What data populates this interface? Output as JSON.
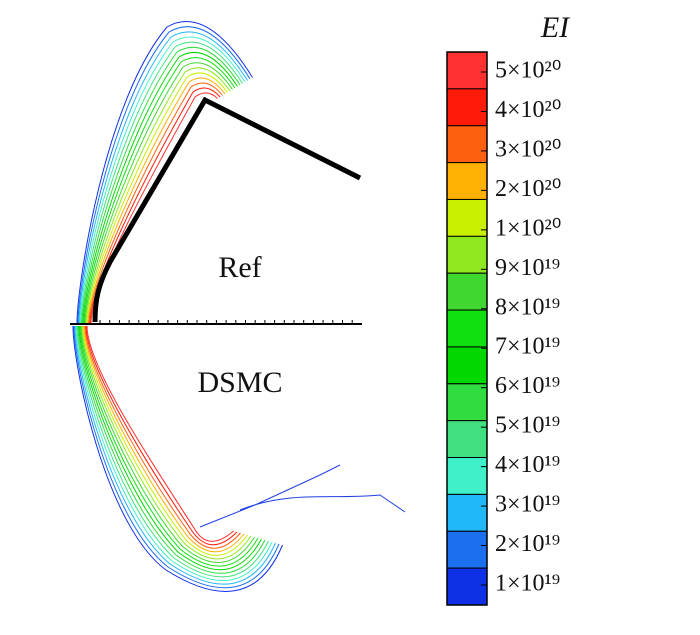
{
  "chart_data": {
    "type": "contour",
    "annotations": [
      "Ref",
      "DSMC"
    ],
    "colorbar": {
      "title": "EI",
      "ticks": [
        {
          "value": 5e+20,
          "label": "5×10²⁰"
        },
        {
          "value": 4e+20,
          "label": "4×10²⁰"
        },
        {
          "value": 3e+20,
          "label": "3×10²⁰"
        },
        {
          "value": 2e+20,
          "label": "2×10²⁰"
        },
        {
          "value": 1e+20,
          "label": "1×10²⁰"
        },
        {
          "value": 9e+19,
          "label": "9×10¹⁹"
        },
        {
          "value": 8e+19,
          "label": "8×10¹⁹"
        },
        {
          "value": 7e+19,
          "label": "7×10¹⁹"
        },
        {
          "value": 6e+19,
          "label": "6×10¹⁹"
        },
        {
          "value": 5e+19,
          "label": "5×10¹⁹"
        },
        {
          "value": 4e+19,
          "label": "4×10¹⁹"
        },
        {
          "value": 3e+19,
          "label": "3×10¹⁹"
        },
        {
          "value": 2e+19,
          "label": "2×10¹⁹"
        },
        {
          "value": 1e+19,
          "label": "1×10¹⁹"
        }
      ],
      "colors": [
        "#ff3030",
        "#ff1a0a",
        "#ff6010",
        "#ffb000",
        "#c8f000",
        "#90e820",
        "#40d830",
        "#10e010",
        "#00d800",
        "#30dc40",
        "#40e080",
        "#40f0c8",
        "#20b8f8",
        "#1c70f0",
        "#1030e8"
      ]
    }
  }
}
